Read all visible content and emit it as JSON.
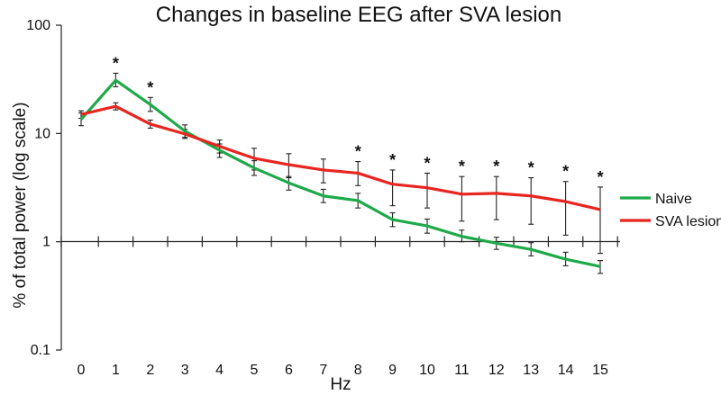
{
  "chart_data": {
    "type": "line",
    "title": "Changes in baseline EEG after SVA lesion",
    "xlabel": "Hz",
    "ylabel": "% of total power (log scale)",
    "yscale": "log",
    "ylim": [
      0.1,
      100
    ],
    "yticks": [
      0.1,
      1,
      10,
      100
    ],
    "ytick_labels": [
      "0.1",
      "1",
      "10",
      "100"
    ],
    "x": [
      0,
      1,
      2,
      3,
      4,
      5,
      6,
      7,
      8,
      9,
      10,
      11,
      12,
      13,
      14,
      15
    ],
    "xtick_labels": [
      "0",
      "1",
      "2",
      "3",
      "4",
      "5",
      "6",
      "7",
      "8",
      "9",
      "10",
      "11",
      "12",
      "13",
      "14",
      "15"
    ],
    "legend_position": "right",
    "series": [
      {
        "name": "Naive",
        "color": "#1faa4a",
        "values": [
          13.5,
          31,
          18.5,
          10.5,
          7.0,
          4.8,
          3.5,
          2.65,
          2.4,
          1.6,
          1.4,
          1.12,
          0.97,
          0.85,
          0.69,
          0.59
        ],
        "err_low": [
          11.8,
          27,
          16,
          9.2,
          6.0,
          4.1,
          3.0,
          2.3,
          2.05,
          1.38,
          1.2,
          1.0,
          0.85,
          0.74,
          0.6,
          0.51
        ],
        "err_high": [
          15.5,
          36,
          21.5,
          12.0,
          8.0,
          5.6,
          4.0,
          3.05,
          2.8,
          1.85,
          1.62,
          1.28,
          1.1,
          0.98,
          0.8,
          0.67
        ]
      },
      {
        "name": "SVA lesion",
        "color": "#e8251f",
        "values": [
          15,
          17.8,
          12.2,
          9.9,
          7.6,
          5.9,
          5.15,
          4.6,
          4.3,
          3.4,
          3.15,
          2.75,
          2.8,
          2.65,
          2.35,
          1.98
        ],
        "err_low": [
          13.8,
          16.5,
          11.2,
          9.0,
          6.6,
          4.6,
          3.9,
          3.5,
          3.3,
          2.15,
          2.05,
          1.55,
          1.6,
          1.45,
          1.15,
          0.78
        ],
        "err_high": [
          16.2,
          19.2,
          13.3,
          10.9,
          8.7,
          7.3,
          6.5,
          5.8,
          5.5,
          4.6,
          4.3,
          4.0,
          4.0,
          3.9,
          3.6,
          3.2
        ]
      }
    ],
    "significance_marker": "*",
    "significant_x": [
      1,
      2,
      8,
      9,
      10,
      11,
      12,
      13,
      14,
      15
    ]
  }
}
